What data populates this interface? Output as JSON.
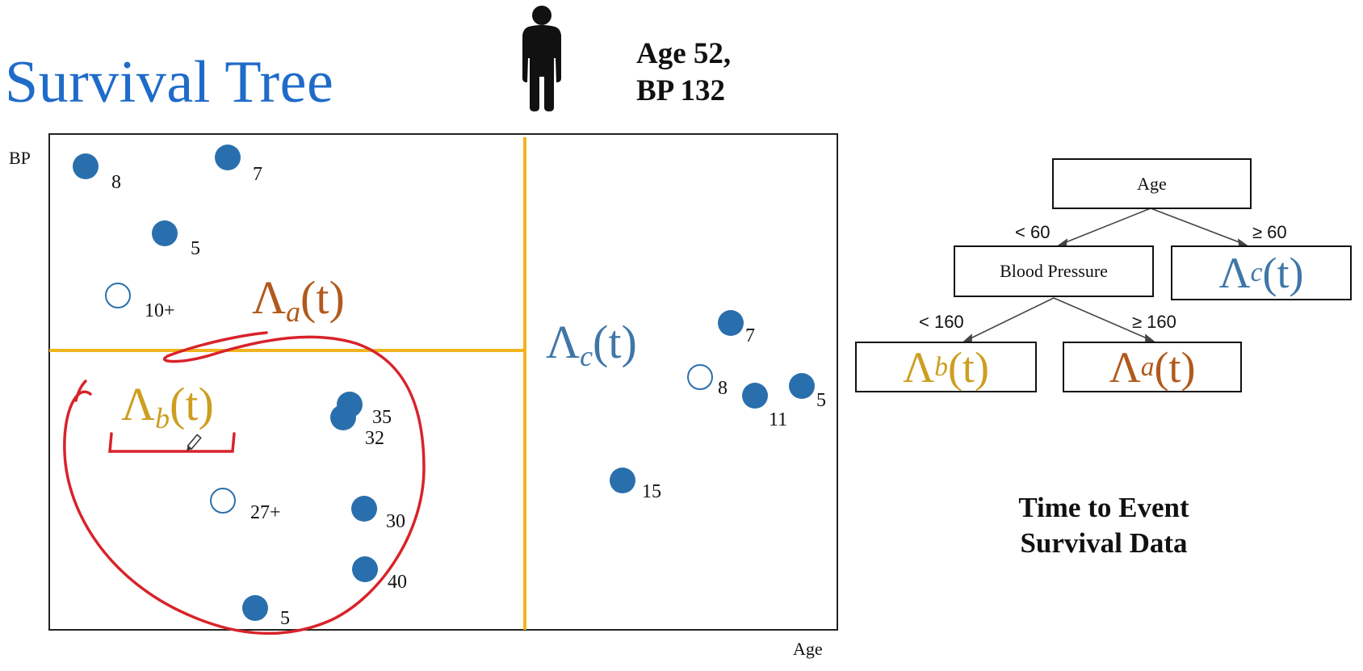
{
  "title": "Survival Tree",
  "patient": {
    "line1": "Age 52,",
    "line2": "BP 132",
    "icon": "person-icon"
  },
  "axes": {
    "y_label": "BP",
    "x_label": "Age"
  },
  "regions": {
    "a": {
      "symbol": "Λ",
      "sub": "a",
      "arg": "(t)",
      "color": "#b15a1c"
    },
    "b": {
      "symbol": "Λ",
      "sub": "b",
      "arg": "(t)",
      "color": "#cd9e20"
    },
    "c": {
      "symbol": "Λ",
      "sub": "c",
      "arg": "(t)",
      "color": "#3f76a8"
    }
  },
  "points": [
    {
      "label": "8",
      "censored": false
    },
    {
      "label": "7",
      "censored": false
    },
    {
      "label": "5",
      "censored": false
    },
    {
      "label": "10+",
      "censored": true
    },
    {
      "label": "35",
      "censored": false
    },
    {
      "label": "32",
      "censored": false
    },
    {
      "label": "27+",
      "censored": true
    },
    {
      "label": "30",
      "censored": false
    },
    {
      "label": "40",
      "censored": false
    },
    {
      "label": "5",
      "censored": false
    },
    {
      "label": "7",
      "censored": false
    },
    {
      "label": "8",
      "censored": true
    },
    {
      "label": "11",
      "censored": false
    },
    {
      "label": "5",
      "censored": false
    },
    {
      "label": "15",
      "censored": false
    }
  ],
  "tree": {
    "root": "Age",
    "node_bp": "Blood Pressure",
    "edge_lt60": "< 60",
    "edge_ge60": "≥ 60",
    "edge_lt160": "< 160",
    "edge_ge160": "≥ 160"
  },
  "caption": {
    "line1": "Time to Event",
    "line2": "Survival Data"
  },
  "colors": {
    "point": "#2a6fad",
    "split": "#f0b41e",
    "annotation": "#d8232a",
    "title": "#1f6bc9"
  }
}
